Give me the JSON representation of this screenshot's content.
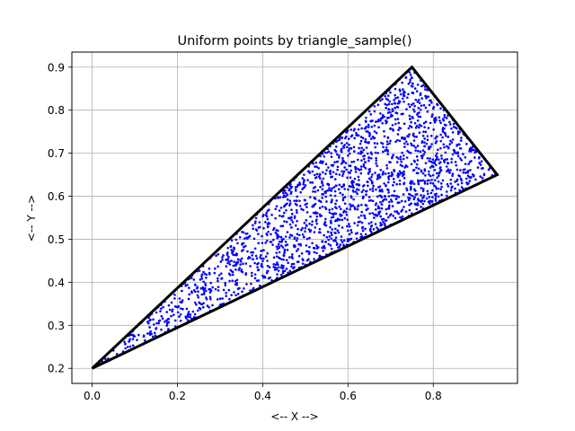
{
  "chart_data": {
    "type": "scatter",
    "title": "Uniform points by triangle_sample()",
    "xlabel": "<-- X -->",
    "ylabel": "<-- Y -->",
    "xlim": [
      -0.0475,
      0.9975
    ],
    "ylim": [
      0.165,
      0.935
    ],
    "xticks": [
      0.0,
      0.2,
      0.4,
      0.6,
      0.8
    ],
    "xtick_labels": [
      "0.0",
      "0.2",
      "0.4",
      "0.6",
      "0.8"
    ],
    "yticks": [
      0.2,
      0.3,
      0.4,
      0.5,
      0.6,
      0.7,
      0.8,
      0.9
    ],
    "ytick_labels": [
      "0.2",
      "0.3",
      "0.4",
      "0.5",
      "0.6",
      "0.7",
      "0.8",
      "0.9"
    ],
    "grid": true,
    "triangle": {
      "vertices": [
        [
          0.0,
          0.2
        ],
        [
          0.95,
          0.65
        ],
        [
          0.75,
          0.9
        ]
      ],
      "color": "#000000"
    },
    "points": {
      "count": 2000,
      "color": "#0000ff",
      "distribution": "uniform inside triangle"
    }
  }
}
